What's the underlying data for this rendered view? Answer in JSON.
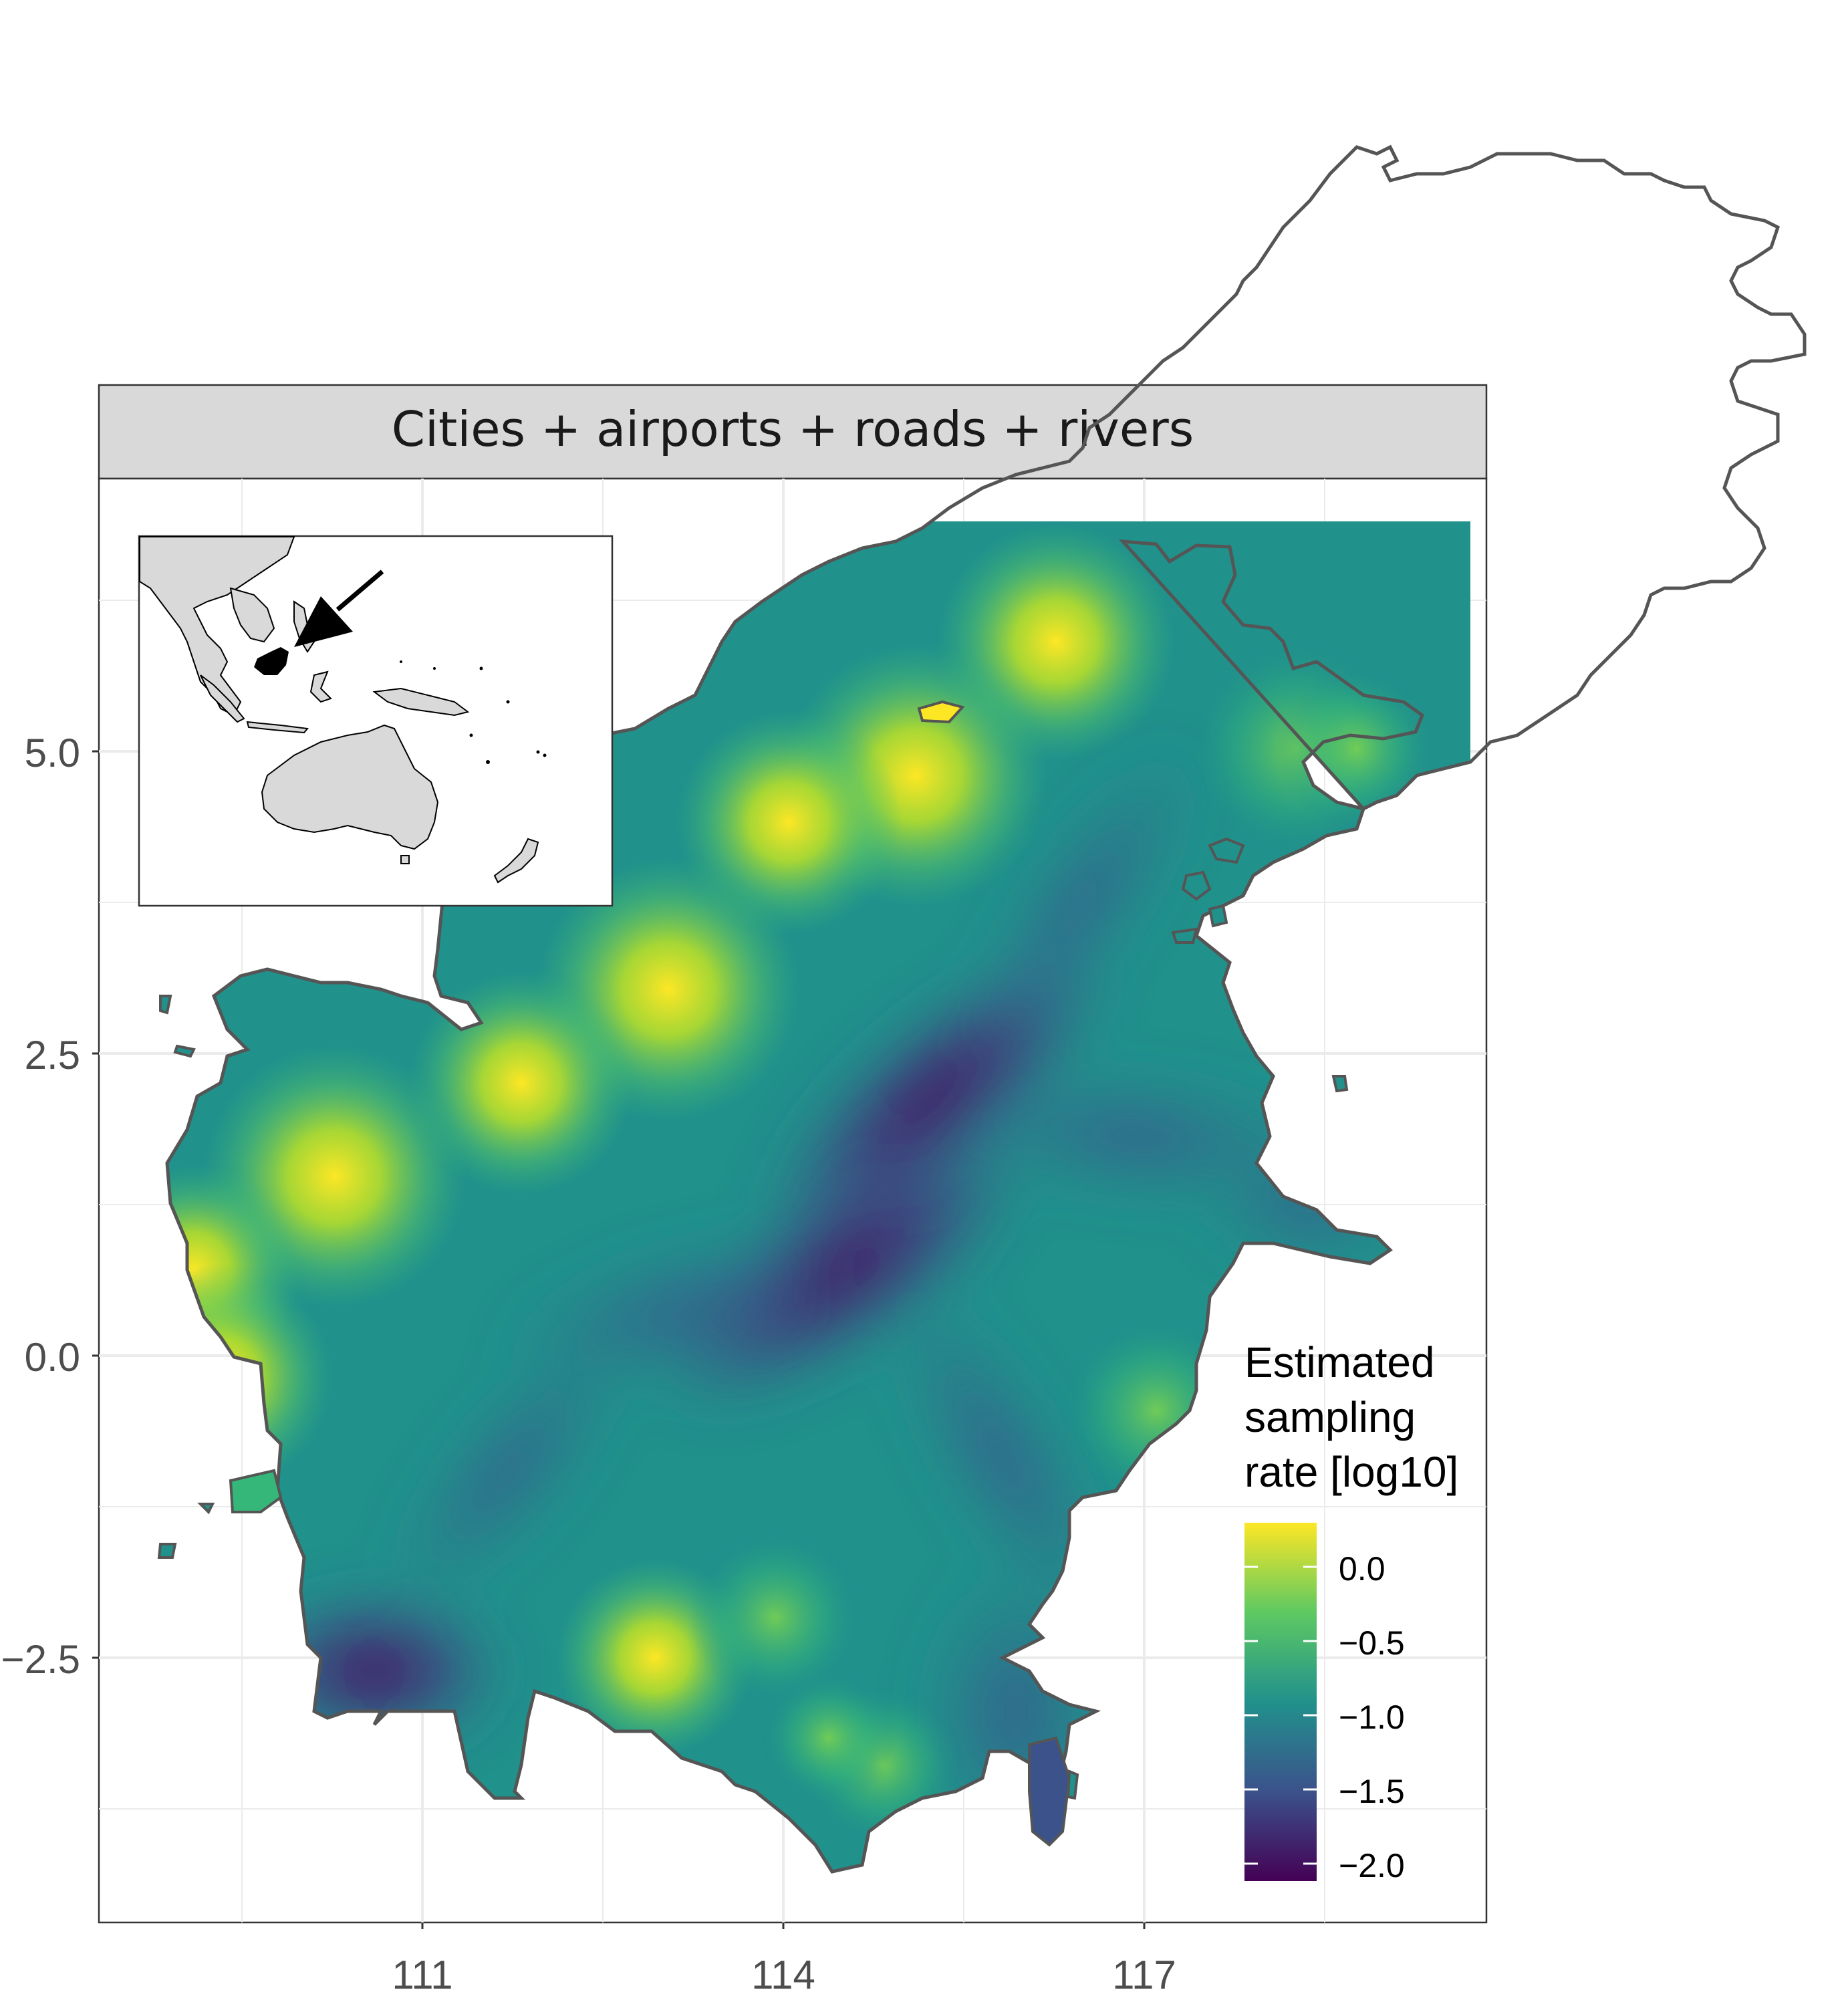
{
  "panel": {
    "strip_title": "Cities + airports + roads + rivers"
  },
  "axes": {
    "x_ticks": [
      "111",
      "114",
      "117"
    ],
    "y_ticks": [
      "5.0",
      "2.5",
      "0.0",
      "−2.5"
    ]
  },
  "legend": {
    "title_lines": [
      "Estimated",
      "sampling",
      "rate [log10]"
    ],
    "labels": [
      "0.0",
      "−0.5",
      "−1.0",
      "−1.5",
      "−2.0"
    ],
    "colormap": [
      "#440154",
      "#3b528b",
      "#21918c",
      "#5ec962",
      "#fde725"
    ]
  },
  "colors": {
    "strip_bg": "#d9d9d9",
    "grid": "#ebebeb",
    "coast": "#555555",
    "inset_land": "#d9d9d9",
    "highlight": "#000000"
  },
  "inset": {
    "content": "locator map of Southeast Asia and Australia with Borneo highlighted in black and an arrow pointing to it"
  }
}
